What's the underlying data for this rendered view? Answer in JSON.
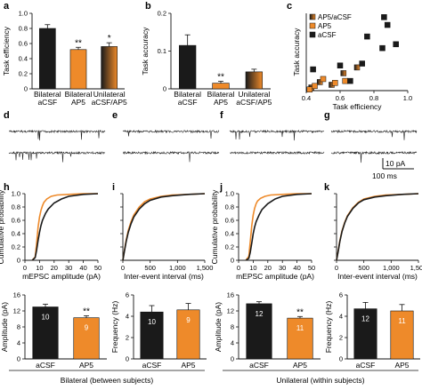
{
  "colors": {
    "acsf": "#1a1a1a",
    "ap5": "#ee8a2a",
    "gradient_start": "#1a1a1a",
    "gradient_end": "#ee8a2a"
  },
  "panel_letters": {
    "a": "a",
    "b": "b",
    "c": "c",
    "d": "d",
    "e": "e",
    "f": "f",
    "g": "g",
    "h": "h",
    "i": "i",
    "j": "j",
    "k": "k"
  },
  "scale_bar": {
    "amplitude": "10 pA",
    "time": "100 ms"
  },
  "group_labels": {
    "bilateral": "Bilateral (between subjects)",
    "unilateral": "Unilateral (within subjects)"
  },
  "chart_data": [
    {
      "id": "a",
      "type": "bar",
      "ylabel": "Task efficiency",
      "ylim": [
        0,
        1
      ],
      "yticks": [
        "0",
        "0.2",
        "0.4",
        "0.6",
        "0.8",
        "1.0"
      ],
      "categories": [
        [
          "Bilateral",
          "aCSF"
        ],
        [
          "Bilateral",
          "AP5"
        ],
        [
          "Unilateral",
          "aCSF/AP5"
        ]
      ],
      "values": [
        0.8,
        0.52,
        0.56
      ],
      "errors": [
        0.05,
        0.03,
        0.05
      ],
      "significance": [
        "",
        "**",
        "*"
      ],
      "fills": [
        "acsf",
        "ap5",
        "gradient"
      ]
    },
    {
      "id": "b",
      "type": "bar",
      "ylabel": "Task accuracy",
      "ylim": [
        0,
        0.2
      ],
      "yticks": [
        "0",
        "0.1",
        "0.2"
      ],
      "categories": [
        [
          "Bilateral",
          "aCSF"
        ],
        [
          "Bilateral",
          "AP5"
        ],
        [
          "Unilateral",
          "aCSF/AP5"
        ]
      ],
      "values": [
        0.115,
        0.015,
        0.045
      ],
      "errors": [
        0.028,
        0.005,
        0.007
      ],
      "significance": [
        "",
        "**",
        ""
      ],
      "fills": [
        "acsf",
        "ap5",
        "gradient"
      ]
    },
    {
      "id": "c",
      "type": "scatter",
      "xlabel": "Task efficiency",
      "ylabel": "Task accuracy",
      "xlim": [
        0.4,
        1.0
      ],
      "ylim": [
        0,
        0.2
      ],
      "xticks": [
        "0.4",
        "0.6",
        "0.8",
        "1.0"
      ],
      "legend": [
        "AP5/aCSF",
        "AP5",
        "aCSF"
      ],
      "legend_position": "top-left",
      "series": [
        {
          "name": "AP5/aCSF",
          "fill": "gradient",
          "x": [
            0.43,
            0.48,
            0.55,
            0.62,
            0.7
          ],
          "y": [
            0.008,
            0.022,
            0.015,
            0.045,
            0.06
          ]
        },
        {
          "name": "AP5",
          "fill": "ap5",
          "x": [
            0.42,
            0.45,
            0.5,
            0.57,
            0.63
          ],
          "y": [
            0.003,
            0.012,
            0.03,
            0.02,
            0.025
          ]
        },
        {
          "name": "aCSF",
          "fill": "acsf",
          "x": [
            0.44,
            0.6,
            0.66,
            0.73,
            0.76,
            0.85,
            0.88,
            0.86,
            0.93
          ],
          "y": [
            0.055,
            0.065,
            0.025,
            0.07,
            0.14,
            0.11,
            0.17,
            0.19,
            0.12
          ]
        }
      ]
    },
    {
      "id": "h",
      "type": "line",
      "xlabel": "mEPSC amplitude (pA)",
      "ylabel": "Cumulative probability",
      "xlim": [
        0,
        50
      ],
      "ylim": [
        0,
        1
      ],
      "xticks": [
        "0",
        "10",
        "20",
        "30",
        "40",
        "50"
      ],
      "yticks": [
        "0",
        "0.2",
        "0.4",
        "0.6",
        "0.8",
        "1.0"
      ],
      "series": [
        {
          "fill": "ap5",
          "x": [
            5,
            7,
            8,
            9,
            10,
            11,
            12,
            13,
            15,
            18,
            22,
            30,
            40,
            50
          ],
          "y": [
            0,
            0.05,
            0.25,
            0.5,
            0.65,
            0.75,
            0.82,
            0.87,
            0.92,
            0.96,
            0.98,
            0.99,
            1,
            1
          ]
        },
        {
          "fill": "acsf",
          "x": [
            5,
            7,
            8,
            9,
            10,
            11,
            12,
            14,
            16,
            20,
            25,
            30,
            40,
            50
          ],
          "y": [
            0,
            0.04,
            0.15,
            0.3,
            0.42,
            0.52,
            0.6,
            0.7,
            0.77,
            0.86,
            0.92,
            0.96,
            0.99,
            1
          ]
        }
      ]
    },
    {
      "id": "i",
      "type": "line",
      "xlabel": "Inter-event interval (ms)",
      "ylim": [
        0,
        1
      ],
      "xlim": [
        0,
        1500
      ],
      "xticks": [
        "0",
        "500",
        "1,000",
        "1,500"
      ],
      "series": [
        {
          "fill": "ap5",
          "x": [
            0,
            30,
            60,
            100,
            150,
            200,
            300,
            400,
            500,
            700,
            900,
            1200,
            1500
          ],
          "y": [
            0,
            0.15,
            0.3,
            0.45,
            0.58,
            0.68,
            0.8,
            0.88,
            0.92,
            0.96,
            0.98,
            0.99,
            1
          ]
        },
        {
          "fill": "acsf",
          "x": [
            0,
            30,
            60,
            100,
            150,
            200,
            300,
            400,
            500,
            700,
            900,
            1200,
            1500
          ],
          "y": [
            0,
            0.14,
            0.28,
            0.42,
            0.55,
            0.65,
            0.77,
            0.85,
            0.9,
            0.95,
            0.97,
            0.99,
            1
          ]
        }
      ]
    },
    {
      "id": "j",
      "type": "line",
      "xlabel": "mEPSC amplitude (pA)",
      "ylabel": "Cumulative probability",
      "xlim": [
        0,
        50
      ],
      "ylim": [
        0,
        1
      ],
      "xticks": [
        "0",
        "10",
        "20",
        "30",
        "40",
        "50"
      ],
      "yticks": [
        "0",
        "0.2",
        "0.4",
        "0.6",
        "0.8",
        "1.0"
      ],
      "series": [
        {
          "fill": "ap5",
          "x": [
            5,
            7,
            8,
            9,
            10,
            11,
            12,
            13,
            15,
            18,
            22,
            30,
            40,
            50
          ],
          "y": [
            0,
            0.06,
            0.28,
            0.52,
            0.68,
            0.78,
            0.85,
            0.89,
            0.93,
            0.96,
            0.98,
            0.99,
            1,
            1
          ]
        },
        {
          "fill": "acsf",
          "x": [
            5,
            7,
            8,
            9,
            10,
            11,
            12,
            14,
            16,
            20,
            25,
            30,
            40,
            50
          ],
          "y": [
            0,
            0.03,
            0.12,
            0.26,
            0.4,
            0.5,
            0.58,
            0.68,
            0.76,
            0.85,
            0.92,
            0.96,
            0.99,
            1
          ]
        }
      ]
    },
    {
      "id": "k",
      "type": "line",
      "xlabel": "Inter-event interval (ms)",
      "ylim": [
        0,
        1
      ],
      "xlim": [
        0,
        1500
      ],
      "xticks": [
        "0",
        "500",
        "1,000",
        "1,500"
      ],
      "series": [
        {
          "fill": "ap5",
          "x": [
            0,
            30,
            60,
            100,
            150,
            200,
            300,
            400,
            500,
            700,
            900,
            1200,
            1500
          ],
          "y": [
            0,
            0.14,
            0.29,
            0.44,
            0.57,
            0.67,
            0.79,
            0.87,
            0.92,
            0.96,
            0.98,
            0.99,
            1
          ]
        },
        {
          "fill": "acsf",
          "x": [
            0,
            30,
            60,
            100,
            150,
            200,
            300,
            400,
            500,
            700,
            900,
            1200,
            1500
          ],
          "y": [
            0,
            0.13,
            0.28,
            0.43,
            0.56,
            0.66,
            0.78,
            0.86,
            0.91,
            0.95,
            0.97,
            0.99,
            1
          ]
        }
      ]
    },
    {
      "id": "h2",
      "type": "bar",
      "ylabel": "Amplitude (pA)",
      "ylim": [
        0,
        16
      ],
      "yticks": [
        "0",
        "4",
        "8",
        "12",
        "16"
      ],
      "categories": [
        "aCSF",
        "AP5"
      ],
      "values": [
        13.0,
        10.3
      ],
      "errors": [
        0.7,
        0.5
      ],
      "n": [
        "10",
        "9"
      ],
      "significance": [
        "",
        "**"
      ],
      "fills": [
        "acsf",
        "ap5"
      ]
    },
    {
      "id": "i2",
      "type": "bar",
      "ylabel": "Frequency (Hz)",
      "ylim": [
        0,
        6
      ],
      "yticks": [
        "0",
        "2",
        "4",
        "6"
      ],
      "categories": [
        "aCSF",
        "AP5"
      ],
      "values": [
        4.4,
        4.6
      ],
      "errors": [
        0.6,
        0.6
      ],
      "n": [
        "10",
        "9"
      ],
      "significance": [
        "",
        ""
      ],
      "fills": [
        "acsf",
        "ap5"
      ]
    },
    {
      "id": "j2",
      "type": "bar",
      "ylabel": "Amplitude (pA)",
      "ylim": [
        0,
        16
      ],
      "yticks": [
        "0",
        "4",
        "8",
        "12",
        "16"
      ],
      "categories": [
        "aCSF",
        "AP5"
      ],
      "values": [
        13.8,
        10.2
      ],
      "errors": [
        0.5,
        0.4
      ],
      "n": [
        "12",
        "11"
      ],
      "significance": [
        "",
        "**"
      ],
      "fills": [
        "acsf",
        "ap5"
      ]
    },
    {
      "id": "k2",
      "type": "bar",
      "ylabel": "Frequency (Hz)",
      "ylim": [
        0,
        6
      ],
      "yticks": [
        "0",
        "2",
        "4",
        "6"
      ],
      "categories": [
        "aCSF",
        "AP5"
      ],
      "values": [
        4.7,
        4.5
      ],
      "errors": [
        0.6,
        0.6
      ],
      "n": [
        "12",
        "11"
      ],
      "significance": [
        "",
        ""
      ],
      "fills": [
        "acsf",
        "ap5"
      ]
    }
  ]
}
